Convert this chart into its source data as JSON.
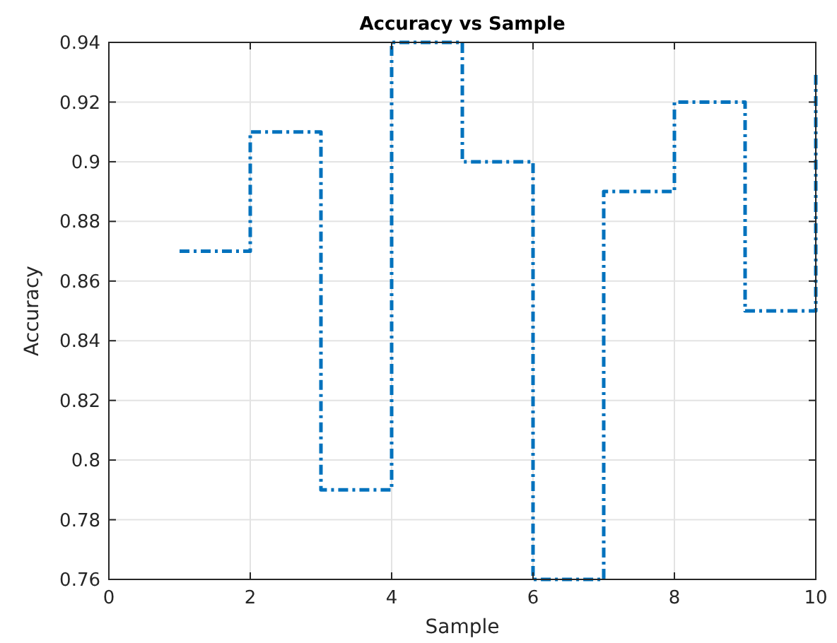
{
  "chart_data": {
    "type": "step",
    "title": "Accuracy vs Sample",
    "xlabel": "Sample",
    "ylabel": "Accuracy",
    "x": [
      1,
      2,
      3,
      4,
      5,
      6,
      7,
      8,
      9,
      10
    ],
    "series": [
      {
        "color": "#0072bd",
        "values": [
          0.87,
          0.91,
          0.79,
          0.94,
          0.9,
          0.76,
          0.89,
          0.92,
          0.85,
          0.93
        ]
      }
    ],
    "xlim": [
      0,
      10
    ],
    "xticks": [
      0,
      2,
      4,
      6,
      8,
      10
    ],
    "ylim": [
      0.76,
      0.94
    ],
    "yticks": [
      0.76,
      0.78,
      0.8,
      0.82,
      0.84,
      0.86,
      0.88,
      0.9,
      0.92,
      0.94
    ],
    "grid": true,
    "line_style": "dashed",
    "marker": "none"
  }
}
